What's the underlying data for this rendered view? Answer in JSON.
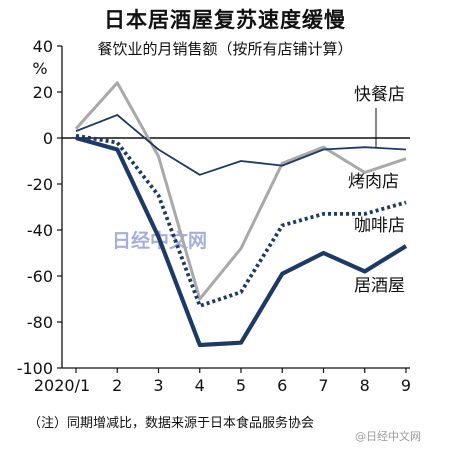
{
  "title": "日本居酒屋复苏速度缓慢",
  "subtitle": "餐饮业的月销售额（按所有店铺计算）",
  "footnote": "（注）同期增减比，数据来源于日本食品服务协会",
  "watermark": "日经中文网",
  "watermark_corner": "@日经中文网",
  "colors": {
    "navy": "#1d3a66",
    "gray": "#a9a9a9"
  },
  "chart_data": {
    "type": "line",
    "title": "日本居酒屋复苏速度缓慢",
    "subtitle": "餐饮业的月销售额（按所有店铺计算）",
    "x": [
      "2020/1",
      "2",
      "3",
      "4",
      "5",
      "6",
      "7",
      "8",
      "9"
    ],
    "ylabel": "%",
    "ylim": [
      -100,
      40
    ],
    "yticks": [
      40,
      20,
      0,
      -20,
      -40,
      -60,
      -80,
      -100
    ],
    "grid": false,
    "series": [
      {
        "name": "快餐店",
        "style": "solid-thin",
        "color": "#1d3a66",
        "values": [
          3,
          10,
          -5,
          -16,
          -10,
          -12,
          -5,
          -4,
          -5
        ]
      },
      {
        "name": "烤肉店",
        "style": "solid-gray",
        "color": "#a9a9a9",
        "values": [
          4,
          24,
          -8,
          -70,
          -48,
          -11,
          -4,
          -15,
          -9
        ]
      },
      {
        "name": "咖啡店",
        "style": "dotted",
        "color": "#1d3a66",
        "values": [
          1,
          -2,
          -25,
          -73,
          -67,
          -38,
          -33,
          -33,
          -28
        ]
      },
      {
        "name": "居酒屋",
        "style": "solid-thick",
        "color": "#1d3a66",
        "values": [
          0,
          -5,
          -43,
          -90,
          -89,
          -59,
          -50,
          -58,
          -47
        ]
      }
    ]
  }
}
